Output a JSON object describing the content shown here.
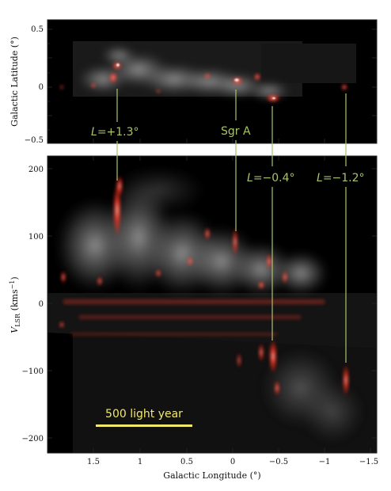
{
  "figure": {
    "top_panel": {
      "ylabel": "Galactic Latitude (°)",
      "y_ticks": [
        "0.5",
        "0",
        "−0.5"
      ]
    },
    "bottom_panel": {
      "ylabel_main": "V",
      "ylabel_sub": "LSR",
      "ylabel_unit_a": " (kms",
      "ylabel_unit_sup": "−1",
      "ylabel_unit_b": ")",
      "y_ticks": [
        "200",
        "100",
        "0",
        "−100",
        "−200"
      ],
      "x_ticks": [
        "1.5",
        "1",
        "0.5",
        "0",
        "−0.5",
        "−1",
        "−1.5"
      ],
      "xlabel": "Galactic Longitude (°)"
    },
    "annotations": [
      {
        "italic": "L",
        "rest": "=+1.3°"
      },
      {
        "italic": "",
        "rest": "Sgr A"
      },
      {
        "italic": "L",
        "rest": "=−0.4°"
      },
      {
        "italic": "L",
        "rest": "=−1.2°"
      }
    ],
    "scale_bar": {
      "label": "500 light year"
    },
    "colors": {
      "annotation": "#a9c46a",
      "scale_bar": "#f2e86a",
      "emission_red": "#ff3a28"
    }
  }
}
